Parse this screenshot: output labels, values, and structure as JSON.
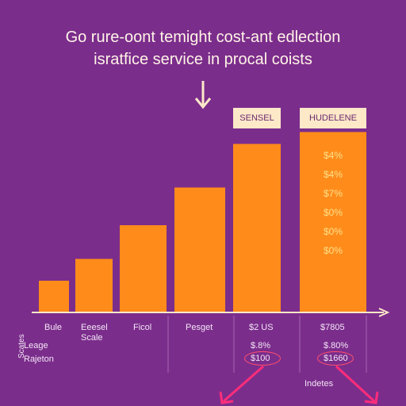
{
  "title": "Go rure-oont temight cost-ant edlection",
  "subtitle": "isratfice service in procal coists",
  "colors": {
    "background": "#7b2d8c",
    "bar": "#ff8c1a",
    "header": "#fde8c8",
    "arrow": "#ff2d7a",
    "value_text": "#ffe08a"
  },
  "chart_data": {
    "type": "bar",
    "title": "Go rure-oont temight cost-ant edlection",
    "subtitle": "isratfice service in procal coists",
    "categories": [
      "Bule",
      "Eeesel Scale",
      "Ficol",
      "Pesget",
      "SENSEL",
      "HUDELENE"
    ],
    "values": [
      16,
      27,
      44,
      63,
      85,
      91
    ],
    "ylim": [
      0,
      100
    ],
    "grid": false,
    "column_headers": [
      "SENSEL",
      "HUDELENE"
    ],
    "bar_value_labels": [
      "$4%",
      "$4%",
      "$7%",
      "$0%",
      "$0%",
      "$0%"
    ],
    "table_rows": [
      {
        "label": "",
        "values": [
          "",
          "",
          "",
          "",
          "$2 US",
          "$7805"
        ]
      },
      {
        "label": "Leage",
        "values": [
          "",
          "",
          "",
          "",
          "$.8%",
          "$.80%"
        ]
      },
      {
        "label": "Rajeton",
        "values": [
          "",
          "",
          "",
          "",
          "$100",
          "$1660"
        ]
      }
    ],
    "side_label": "Scates",
    "footnote": "Indetes"
  }
}
